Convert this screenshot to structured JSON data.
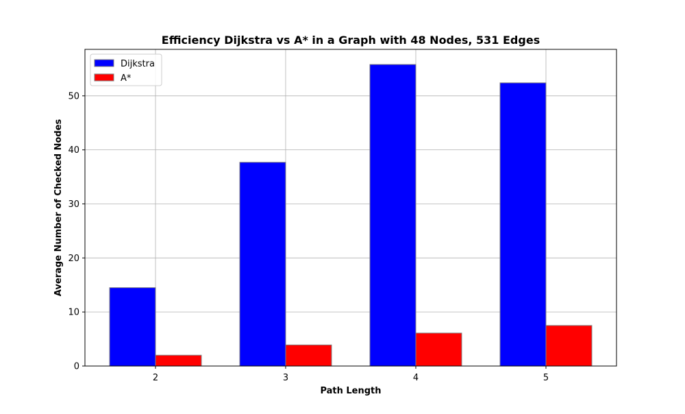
{
  "chart_data": {
    "type": "bar",
    "title": "Efficiency Dijkstra vs A* in a Graph with 48 Nodes, 531 Edges",
    "xlabel": "Path Length",
    "ylabel": "Average Number of Checked Nodes",
    "categories": [
      "2",
      "3",
      "4",
      "5"
    ],
    "series": [
      {
        "name": "Dijkstra",
        "color": "#0000ff",
        "values": [
          14.5,
          37.7,
          55.8,
          52.4
        ]
      },
      {
        "name": "A*",
        "color": "#ff0000",
        "values": [
          2.0,
          3.9,
          6.1,
          7.5
        ]
      }
    ],
    "ylim": [
      0,
      58.6
    ],
    "yticks": [
      0,
      10,
      20,
      30,
      40,
      50
    ],
    "grid": true,
    "legend_position": "top-left"
  }
}
